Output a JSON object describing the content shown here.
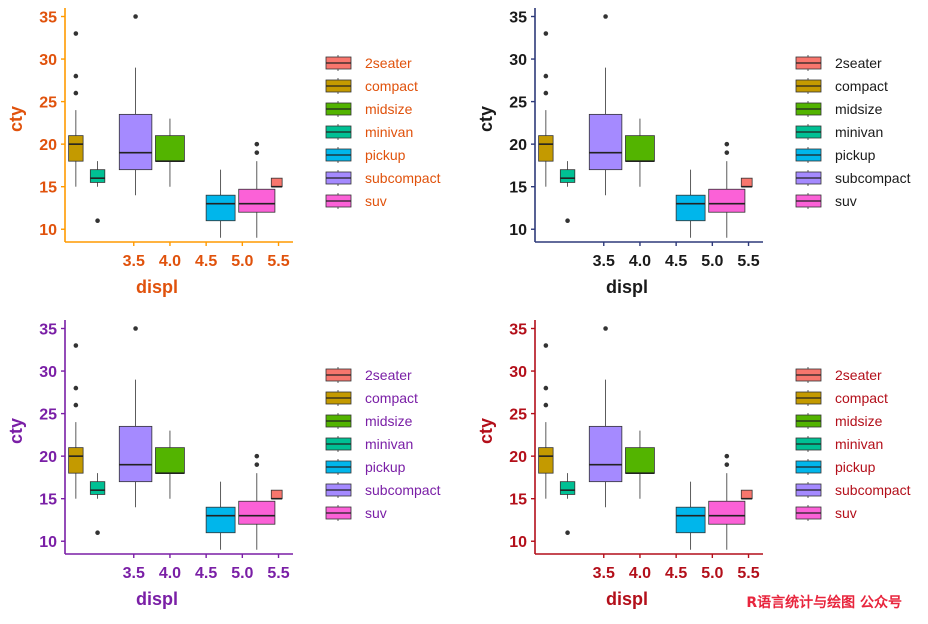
{
  "watermark": "R语言统计与绘图 公众号",
  "classes": [
    {
      "name": "2seater",
      "color": "#F8766D"
    },
    {
      "name": "compact",
      "color": "#C49A00"
    },
    {
      "name": "midsize",
      "color": "#53B400"
    },
    {
      "name": "minivan",
      "color": "#00C094"
    },
    {
      "name": "pickup",
      "color": "#00B6EB"
    },
    {
      "name": "subcompact",
      "color": "#A58AFF"
    },
    {
      "name": "suv",
      "color": "#FB61D7"
    }
  ],
  "chart_data": [
    {
      "panel": "top-left",
      "type": "boxplot",
      "xlabel": "displ",
      "ylabel": "cty",
      "theme_color": "#E0520C",
      "axis_color": "#FF9A00",
      "ylim": [
        8.5,
        36
      ],
      "xlim": [
        2.55,
        5.7
      ],
      "yticks": [
        10,
        15,
        20,
        25,
        30,
        35
      ],
      "xticks": [
        "3.5",
        "4.0",
        "4.5",
        "5.0",
        "5.5"
      ],
      "legend_position": "right",
      "legend_text_color": "#E0520C"
    },
    {
      "panel": "top-right",
      "type": "boxplot",
      "xlabel": "displ",
      "ylabel": "cty",
      "theme_color": "#1A1A1A",
      "axis_color": "#2E3A7A",
      "ylim": [
        8.5,
        36
      ],
      "xlim": [
        2.55,
        5.7
      ],
      "yticks": [
        10,
        15,
        20,
        25,
        30,
        35
      ],
      "xticks": [
        "3.5",
        "4.0",
        "4.5",
        "5.0",
        "5.5"
      ],
      "legend_position": "right",
      "legend_text_color": "#1A1A1A"
    },
    {
      "panel": "bottom-left",
      "type": "boxplot",
      "xlabel": "displ",
      "ylabel": "cty",
      "theme_color": "#7A1FA6",
      "axis_color": "#7A1FA6",
      "ylim": [
        8.5,
        36
      ],
      "xlim": [
        2.55,
        5.7
      ],
      "yticks": [
        10,
        15,
        20,
        25,
        30,
        35
      ],
      "xticks": [
        "3.5",
        "4.0",
        "4.5",
        "5.0",
        "5.5"
      ],
      "legend_position": "right",
      "legend_text_color": "#7A1FA6"
    },
    {
      "panel": "bottom-right",
      "type": "boxplot",
      "xlabel": "displ",
      "ylabel": "cty",
      "theme_color": "#B30F1A",
      "axis_color": "#B30F1A",
      "ylim": [
        8.5,
        36
      ],
      "xlim": [
        2.55,
        5.7
      ],
      "yticks": [
        10,
        15,
        20,
        25,
        30,
        35
      ],
      "xticks": [
        "3.5",
        "4.0",
        "4.5",
        "5.0",
        "5.5"
      ],
      "legend_position": "right",
      "legend_text_color": "#B30F1A"
    }
  ],
  "boxes": [
    {
      "class": "compact",
      "x_min": 2.6,
      "x_max": 2.8,
      "whisker_low": 15,
      "q1": 18,
      "median": 20,
      "q3": 21,
      "whisker_high": 24,
      "outliers": [
        26,
        28,
        33
      ]
    },
    {
      "class": "minivan",
      "x_min": 2.9,
      "x_max": 3.1,
      "whisker_low": 15,
      "q1": 15.5,
      "median": 16,
      "q3": 17,
      "whisker_high": 18,
      "outliers": [
        11
      ]
    },
    {
      "class": "subcompact",
      "x_min": 3.3,
      "x_max": 3.75,
      "whisker_low": 14,
      "q1": 17,
      "median": 19,
      "q3": 23.5,
      "whisker_high": 29,
      "outliers": [
        35
      ]
    },
    {
      "class": "midsize",
      "x_min": 3.8,
      "x_max": 4.2,
      "whisker_low": 15,
      "q1": 18,
      "median": 18,
      "q3": 21,
      "whisker_high": 23,
      "outliers": []
    },
    {
      "class": "pickup",
      "x_min": 4.5,
      "x_max": 4.9,
      "whisker_low": 9,
      "q1": 11,
      "median": 13,
      "q3": 14,
      "whisker_high": 17,
      "outliers": []
    },
    {
      "class": "suv",
      "x_min": 4.95,
      "x_max": 5.45,
      "whisker_low": 9,
      "q1": 12,
      "median": 13,
      "q3": 14.7,
      "whisker_high": 18,
      "outliers": [
        19,
        20
      ]
    },
    {
      "class": "2seater",
      "x_min": 5.4,
      "x_max": 5.55,
      "whisker_low": 15,
      "q1": 15,
      "median": 15,
      "q3": 16,
      "whisker_high": 16,
      "outliers": []
    }
  ]
}
